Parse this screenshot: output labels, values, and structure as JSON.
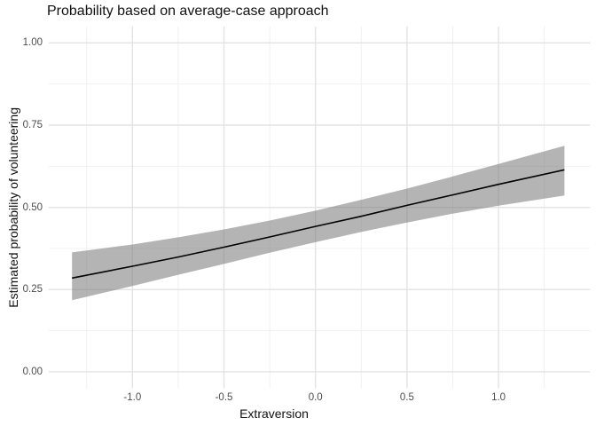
{
  "chart_data": {
    "type": "line",
    "title": "Probability based on average-case approach",
    "xlabel": "Extraversion",
    "ylabel": "Estimated probability of volunteering",
    "legend": "none",
    "grid": "major+minor",
    "xlim": [
      -1.457,
      1.5
    ],
    "ylim": [
      -0.05,
      1.05
    ],
    "x_ticks": {
      "values": [
        -1.0,
        -0.5,
        0.0,
        0.5,
        1.0
      ],
      "labels": [
        "-1.0",
        "-0.5",
        "0.0",
        "0.5",
        "1.0"
      ]
    },
    "y_ticks": {
      "values": [
        0.0,
        0.25,
        0.5,
        0.75,
        1.0
      ],
      "labels": [
        "0.00",
        "0.25",
        "0.50",
        "0.75",
        "1.00"
      ]
    },
    "x_minor": [
      -1.25,
      -0.75,
      -0.25,
      0.25,
      0.75,
      1.25
    ],
    "y_minor": [
      0.125,
      0.375,
      0.625,
      0.875
    ],
    "x": [
      -1.33,
      -1.0,
      -0.75,
      -0.5,
      -0.25,
      0.0,
      0.25,
      0.5,
      0.75,
      1.0,
      1.36
    ],
    "series": [
      {
        "name": "fit",
        "values": [
          0.285,
          0.321,
          0.349,
          0.379,
          0.41,
          0.442,
          0.473,
          0.506,
          0.538,
          0.57,
          0.614
        ]
      },
      {
        "name": "ci_lower",
        "values": [
          0.218,
          0.261,
          0.295,
          0.328,
          0.362,
          0.394,
          0.425,
          0.454,
          0.481,
          0.505,
          0.536
        ]
      },
      {
        "name": "ci_upper",
        "values": [
          0.363,
          0.387,
          0.409,
          0.433,
          0.46,
          0.49,
          0.523,
          0.557,
          0.594,
          0.632,
          0.687
        ]
      }
    ],
    "colors": {
      "line": "#000000",
      "ribbon_fill": "#777777",
      "ribbon_opacity": 0.55,
      "grid_major": "#e3e3e3",
      "grid_minor": "#efefef",
      "tick_label": "#4d4d4d",
      "text": "#111111",
      "background": "#ffffff"
    }
  }
}
